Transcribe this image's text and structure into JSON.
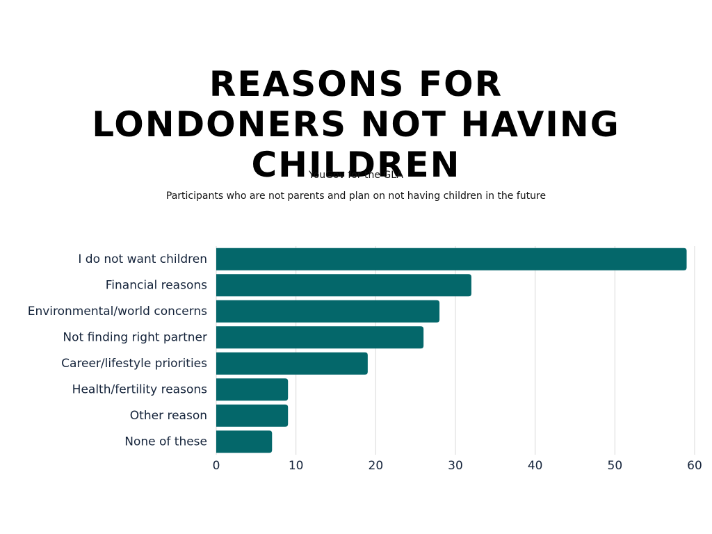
{
  "chart_data": {
    "type": "bar",
    "orientation": "horizontal",
    "title": "REASONS FOR LONDONERS NOT HAVING CHILDREN",
    "source": "YouGov for the GLA",
    "subtitle": "Participants who are not parents and plan on not having children in the future",
    "categories": [
      "I do not want children",
      "Financial reasons",
      "Environmental/world concerns",
      "Not finding right partner",
      "Career/lifestyle priorities",
      "Health/fertility reasons",
      "Other reason",
      "None of these"
    ],
    "values": [
      59,
      32,
      28,
      26,
      19,
      9,
      9,
      7
    ],
    "color": "#04676a",
    "xlim": [
      0,
      60
    ],
    "xticks": [
      0,
      10,
      20,
      30,
      40,
      50,
      60
    ],
    "grid": true
  }
}
